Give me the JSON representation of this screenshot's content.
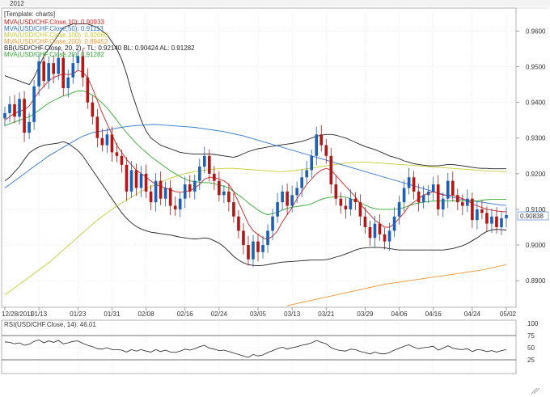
{
  "header": {
    "year_label": "2012"
  },
  "chart_data": {
    "type": "candlestick",
    "template_label": "[Template: charts]",
    "legend": [
      {
        "text": "MVA(USD/CHF.Close,10): 0.90933",
        "color": "#cc2222"
      },
      {
        "text": "MVA(USD/CHF.Close,50): 0.91113",
        "color": "#3377cc"
      },
      {
        "text": "MVA(USD/CHF.Close,100): 0.92060",
        "color": "#c8cc33"
      },
      {
        "text": "MVA(USD/CHF.Close,200): 0.89452",
        "color": "#ee9933"
      },
      {
        "text": "BB(USD/CHF.Close, 20, 2) -  TL: 0.92140  BL: 0.90424  AL: 0.91282",
        "color": "#222222"
      },
      {
        "text": "MVA(USD/CHF.Close,20): 0.91282",
        "color": "#33aa33"
      }
    ],
    "x_tick_labels": [
      "12/28/2011",
      "01/13",
      "01/23",
      "01/31",
      "02/08",
      "02/16",
      "02/24",
      "03/05",
      "03/13",
      "03/21",
      "03/29",
      "04/06",
      "04/16",
      "04/24",
      "05/02"
    ],
    "y_ticks": [
      "0.9600",
      "0.9500",
      "0.9400",
      "0.9300",
      "0.9200",
      "0.9100",
      "0.9000",
      "0.8900"
    ],
    "ylim": [
      0.883,
      0.966
    ],
    "last_price": "0.90838",
    "closes": [
      0.937,
      0.9395,
      0.936,
      0.941,
      0.9315,
      0.9345,
      0.9445,
      0.9515,
      0.946,
      0.951,
      0.948,
      0.9525,
      0.944,
      0.947,
      0.951,
      0.953,
      0.947,
      0.94,
      0.936,
      0.93,
      0.928,
      0.931,
      0.926,
      0.925,
      0.9225,
      0.915,
      0.921,
      0.916,
      0.92,
      0.915,
      0.912,
      0.918,
      0.913,
      0.916,
      0.911,
      0.91,
      0.913,
      0.917,
      0.915,
      0.918,
      0.922,
      0.925,
      0.92,
      0.918,
      0.914,
      0.915,
      0.912,
      0.908,
      0.904,
      0.9,
      0.896,
      0.901,
      0.898,
      0.9,
      0.904,
      0.908,
      0.912,
      0.915,
      0.911,
      0.914,
      0.916,
      0.919,
      0.921,
      0.925,
      0.931,
      0.928,
      0.925,
      0.917,
      0.913,
      0.911,
      0.91,
      0.913,
      0.912,
      0.908,
      0.905,
      0.902,
      0.906,
      0.903,
      0.901,
      0.904,
      0.908,
      0.912,
      0.916,
      0.919,
      0.915,
      0.912,
      0.914,
      0.915,
      0.917,
      0.91,
      0.913,
      0.918,
      0.914,
      0.912,
      0.911,
      0.913,
      0.907,
      0.91,
      0.909,
      0.906,
      0.908,
      0.905,
      0.9075,
      0.9084
    ],
    "mva10": [
      0.935,
      0.936,
      0.937,
      0.9375,
      0.938,
      0.939,
      0.941,
      0.943,
      0.9445,
      0.946,
      0.947,
      0.9475,
      0.948,
      0.9478,
      0.948,
      0.949,
      0.9485,
      0.947,
      0.944,
      0.9405,
      0.937,
      0.934,
      0.931,
      0.928,
      0.926,
      0.924,
      0.9225,
      0.921,
      0.92,
      0.919,
      0.918,
      0.917,
      0.9165,
      0.916,
      0.9155,
      0.915,
      0.9148,
      0.915,
      0.9152,
      0.916,
      0.917,
      0.9185,
      0.919,
      0.919,
      0.9185,
      0.918,
      0.917,
      0.915,
      0.912,
      0.909,
      0.906,
      0.904,
      0.903,
      0.902,
      0.9015,
      0.9025,
      0.904,
      0.9065,
      0.9085,
      0.9105,
      0.913,
      0.915,
      0.917,
      0.9185,
      0.92,
      0.921,
      0.9215,
      0.921,
      0.9195,
      0.918,
      0.9165,
      0.915,
      0.9135,
      0.9115,
      0.91,
      0.9085,
      0.907,
      0.906,
      0.905,
      0.905,
      0.906,
      0.9075,
      0.909,
      0.911,
      0.912,
      0.913,
      0.914,
      0.9145,
      0.915,
      0.9145,
      0.914,
      0.914,
      0.914,
      0.9135,
      0.913,
      0.9125,
      0.9115,
      0.911,
      0.9105,
      0.91,
      0.9098,
      0.9095,
      0.9094,
      0.9093
    ],
    "mva20": [
      0.9335,
      0.934,
      0.9345,
      0.935,
      0.9355,
      0.936,
      0.9368,
      0.9378,
      0.9388,
      0.9398,
      0.9405,
      0.9412,
      0.9418,
      0.9422,
      0.9428,
      0.9432,
      0.9432,
      0.9428,
      0.942,
      0.941,
      0.9398,
      0.9385,
      0.9368,
      0.935,
      0.9332,
      0.9315,
      0.93,
      0.9285,
      0.9272,
      0.926,
      0.9248,
      0.9238,
      0.9228,
      0.9218,
      0.9208,
      0.92,
      0.9192,
      0.9185,
      0.918,
      0.9178,
      0.9176,
      0.9175,
      0.9175,
      0.9172,
      0.9168,
      0.9165,
      0.916,
      0.915,
      0.914,
      0.913,
      0.9118,
      0.9108,
      0.9098,
      0.909,
      0.9085,
      0.9088,
      0.9092,
      0.9098,
      0.9103,
      0.9106,
      0.9108,
      0.911,
      0.9112,
      0.9116,
      0.9122,
      0.9128,
      0.9132,
      0.9134,
      0.9136,
      0.9136,
      0.9134,
      0.913,
      0.9124,
      0.9118,
      0.9112,
      0.9106,
      0.9102,
      0.91,
      0.91,
      0.91,
      0.91,
      0.9102,
      0.9105,
      0.911,
      0.9115,
      0.9118,
      0.912,
      0.9122,
      0.9123,
      0.9124,
      0.9124,
      0.9124,
      0.9124,
      0.9124,
      0.9124,
      0.9124,
      0.9124,
      0.9124,
      0.9126,
      0.9127,
      0.9128,
      0.9128,
      0.9128,
      0.9128
    ],
    "mva50": [
      0.916,
      0.917,
      0.918,
      0.919,
      0.92,
      0.921,
      0.922,
      0.923,
      0.924,
      0.925,
      0.9258,
      0.9266,
      0.9274,
      0.9282,
      0.929,
      0.9298,
      0.9305,
      0.931,
      0.9315,
      0.9318,
      0.932,
      0.9322,
      0.9325,
      0.9328,
      0.933,
      0.9332,
      0.9334,
      0.9335,
      0.9336,
      0.9337,
      0.9338,
      0.9338,
      0.9337,
      0.9336,
      0.9335,
      0.9334,
      0.9333,
      0.9332,
      0.9331,
      0.933,
      0.9328,
      0.9326,
      0.9324,
      0.9322,
      0.932,
      0.9318,
      0.9315,
      0.9312,
      0.9309,
      0.9306,
      0.9302,
      0.9298,
      0.9294,
      0.929,
      0.9286,
      0.9282,
      0.9278,
      0.9274,
      0.927,
      0.9266,
      0.9262,
      0.9258,
      0.9254,
      0.925,
      0.9246,
      0.9242,
      0.9238,
      0.9234,
      0.923,
      0.9226,
      0.9222,
      0.9218,
      0.9214,
      0.921,
      0.9206,
      0.9202,
      0.9198,
      0.9194,
      0.919,
      0.9186,
      0.9182,
      0.9178,
      0.9174,
      0.917,
      0.9166,
      0.9162,
      0.9158,
      0.9154,
      0.915,
      0.9146,
      0.9142,
      0.9138,
      0.9134,
      0.913,
      0.9128,
      0.9126,
      0.9124,
      0.9122,
      0.912,
      0.9118,
      0.9116,
      0.9114,
      0.9112,
      0.9111
    ],
    "mva100": [
      0.886,
      0.887,
      0.888,
      0.889,
      0.89,
      0.891,
      0.892,
      0.893,
      0.894,
      0.895,
      0.8962,
      0.8974,
      0.8986,
      0.8998,
      0.901,
      0.9022,
      0.9034,
      0.9046,
      0.9058,
      0.907,
      0.908,
      0.909,
      0.91,
      0.911,
      0.9118,
      0.9126,
      0.9134,
      0.9142,
      0.915,
      0.9158,
      0.9164,
      0.917,
      0.9176,
      0.9182,
      0.9188,
      0.9192,
      0.9196,
      0.92,
      0.9203,
      0.9206,
      0.9208,
      0.921,
      0.9212,
      0.9213,
      0.9214,
      0.9215,
      0.9215,
      0.9215,
      0.9214,
      0.9213,
      0.9212,
      0.9211,
      0.921,
      0.9209,
      0.9208,
      0.9207,
      0.9206,
      0.9206,
      0.9207,
      0.9208,
      0.921,
      0.9212,
      0.9214,
      0.9216,
      0.9218,
      0.922,
      0.9222,
      0.9224,
      0.9226,
      0.9228,
      0.923,
      0.9231,
      0.9232,
      0.9232,
      0.9232,
      0.9232,
      0.9231,
      0.923,
      0.9229,
      0.9228,
      0.9227,
      0.9226,
      0.9225,
      0.9224,
      0.9223,
      0.9222,
      0.9221,
      0.922,
      0.9219,
      0.9218,
      0.9217,
      0.9216,
      0.9215,
      0.9214,
      0.9213,
      0.9212,
      0.9211,
      0.921,
      0.9209,
      0.9208,
      0.9207,
      0.9207,
      0.9206,
      0.9206
    ],
    "mva200_start_index": 58,
    "mva200": [
      0.883,
      0.8833,
      0.8836,
      0.8839,
      0.8842,
      0.8845,
      0.8848,
      0.8851,
      0.8854,
      0.8857,
      0.886,
      0.8863,
      0.8866,
      0.8869,
      0.8872,
      0.8875,
      0.8878,
      0.8881,
      0.8884,
      0.8887,
      0.889,
      0.8892,
      0.8894,
      0.8896,
      0.8898,
      0.89,
      0.8902,
      0.8904,
      0.8906,
      0.8908,
      0.891,
      0.8912,
      0.8914,
      0.8916,
      0.8918,
      0.892,
      0.8922,
      0.8924,
      0.8926,
      0.8928,
      0.893,
      0.8933,
      0.8936,
      0.8939,
      0.8942,
      0.8945
    ],
    "bb_upper": [
      0.9475,
      0.947,
      0.9465,
      0.946,
      0.9455,
      0.945,
      0.947,
      0.95,
      0.953,
      0.955,
      0.957,
      0.959,
      0.961,
      0.9615,
      0.962,
      0.962,
      0.962,
      0.962,
      0.9615,
      0.961,
      0.96,
      0.959,
      0.957,
      0.955,
      0.952,
      0.948,
      0.943,
      0.939,
      0.935,
      0.932,
      0.93,
      0.929,
      0.928,
      0.9275,
      0.927,
      0.9265,
      0.926,
      0.9258,
      0.9256,
      0.9255,
      0.9255,
      0.9255,
      0.9255,
      0.9254,
      0.9252,
      0.925,
      0.9248,
      0.9246,
      0.925,
      0.9256,
      0.9262,
      0.9266,
      0.927,
      0.9272,
      0.9275,
      0.9277,
      0.9279,
      0.9281,
      0.9283,
      0.9285,
      0.9288,
      0.9291,
      0.9295,
      0.93,
      0.9305,
      0.9308,
      0.931,
      0.931,
      0.9308,
      0.9304,
      0.93,
      0.9294,
      0.9288,
      0.9282,
      0.9276,
      0.9272,
      0.9268,
      0.9262,
      0.9256,
      0.925,
      0.9246,
      0.9242,
      0.9236,
      0.9232,
      0.9228,
      0.9226,
      0.9224,
      0.9222,
      0.9222,
      0.9222,
      0.9224,
      0.9226,
      0.9226,
      0.9224,
      0.9222,
      0.922,
      0.9218,
      0.9216,
      0.9215,
      0.9215,
      0.9214,
      0.9214,
      0.9214,
      0.9214
    ],
    "bb_lower": [
      0.918,
      0.919,
      0.9205,
      0.922,
      0.924,
      0.9258,
      0.9268,
      0.9275,
      0.928,
      0.9282,
      0.9284,
      0.9286,
      0.929,
      0.9285,
      0.9275,
      0.9265,
      0.925,
      0.923,
      0.921,
      0.919,
      0.917,
      0.915,
      0.913,
      0.911,
      0.909,
      0.9075,
      0.9062,
      0.9052,
      0.9045,
      0.904,
      0.9036,
      0.9034,
      0.9032,
      0.903,
      0.9028,
      0.9025,
      0.9022,
      0.902,
      0.9018,
      0.9017,
      0.9018,
      0.902,
      0.9018,
      0.9012,
      0.9005,
      0.8995,
      0.8982,
      0.8968,
      0.8958,
      0.895,
      0.8945,
      0.8943,
      0.8942,
      0.8943,
      0.8945,
      0.8948,
      0.895,
      0.8952,
      0.8953,
      0.8954,
      0.8955,
      0.8956,
      0.8957,
      0.8958,
      0.8958,
      0.8958,
      0.8959,
      0.8962,
      0.8966,
      0.897,
      0.8975,
      0.898,
      0.8986,
      0.899,
      0.8992,
      0.8993,
      0.8993,
      0.8993,
      0.8992,
      0.899,
      0.8988,
      0.8986,
      0.8986,
      0.8986,
      0.8986,
      0.8986,
      0.8986,
      0.8986,
      0.8986,
      0.8986,
      0.8986,
      0.8988,
      0.899,
      0.8994,
      0.8998,
      0.9004,
      0.9012,
      0.902,
      0.903,
      0.9038,
      0.9042,
      0.9044,
      0.9043,
      0.9042
    ]
  },
  "rsi": {
    "label": "RSI(USD/CHF.Close, 14): 46.01",
    "ticks": [
      "100",
      "75",
      "50",
      "25"
    ],
    "ylim": [
      0,
      100
    ],
    "values": [
      62,
      61,
      58,
      60,
      55,
      57,
      63,
      66,
      60,
      64,
      61,
      65,
      58,
      60,
      63,
      64,
      59,
      55,
      52,
      48,
      47,
      50,
      46,
      46,
      45,
      41,
      46,
      43,
      46,
      43,
      41,
      46,
      42,
      45,
      41,
      40,
      43,
      47,
      45,
      48,
      52,
      55,
      49,
      47,
      44,
      45,
      42,
      39,
      36,
      33,
      30,
      36,
      33,
      35,
      40,
      44,
      48,
      51,
      47,
      50,
      52,
      55,
      57,
      60,
      65,
      61,
      58,
      50,
      46,
      44,
      43,
      47,
      46,
      42,
      40,
      37,
      41,
      38,
      37,
      40,
      45,
      49,
      53,
      56,
      51,
      48,
      50,
      51,
      53,
      45,
      49,
      54,
      49,
      47,
      46,
      48,
      42,
      46,
      45,
      42,
      44,
      41,
      44,
      46
    ]
  }
}
